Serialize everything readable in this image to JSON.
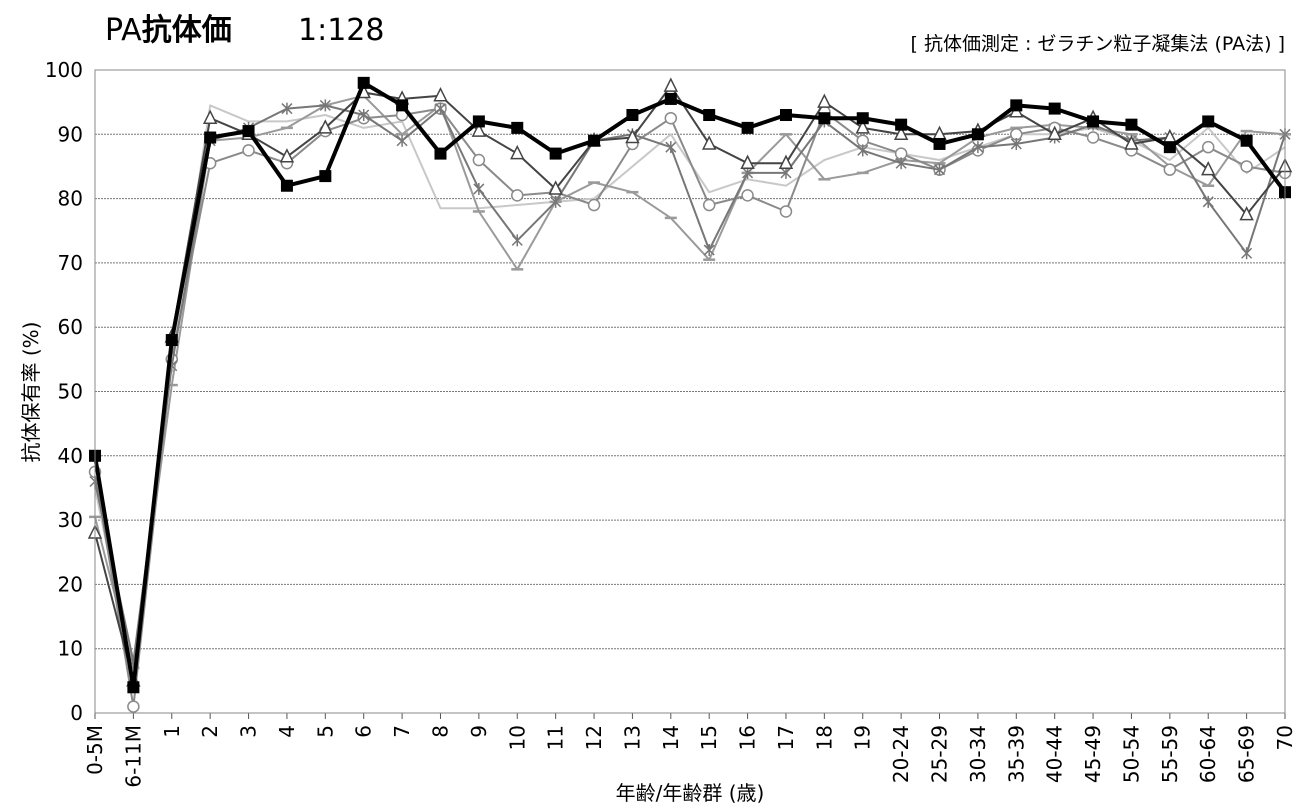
{
  "chart_data": {
    "type": "line",
    "title_prefix": "PA",
    "title_bold": "抗体価",
    "title_ratio": "1:128",
    "subtitle": "[ 抗体価測定 : ゼラチン粒子凝集法 (PA法) ]",
    "xlabel": "年齢/年齢群 (歳)",
    "ylabel": "抗体保有率 (%)",
    "ylim": [
      0,
      100
    ],
    "yticks": [
      0,
      10,
      20,
      30,
      40,
      50,
      60,
      70,
      80,
      90,
      100
    ],
    "grid": true,
    "categories": [
      "0-5M",
      "6-11M",
      "1",
      "2",
      "3",
      "4",
      "5",
      "6",
      "7",
      "8",
      "9",
      "10",
      "11",
      "12",
      "13",
      "14",
      "15",
      "16",
      "17",
      "18",
      "19",
      "20-24",
      "25-29",
      "30-34",
      "35-39",
      "40-44",
      "45-49",
      "50-54",
      "55-59",
      "60-64",
      "65-69",
      "70"
    ],
    "series": [
      {
        "marker": "none",
        "color": "#c8c8c8",
        "width": 2,
        "values": [
          35,
          6,
          55,
          94.5,
          92,
          92,
          93,
          91,
          92,
          78.5,
          78.5,
          79,
          79.5,
          80,
          85,
          90,
          81,
          83,
          82,
          86,
          88,
          87,
          86,
          88,
          90,
          90,
          91,
          89,
          86,
          91,
          84,
          88
        ]
      },
      {
        "marker": "dash",
        "color": "#9a9a9a",
        "width": 2,
        "values": [
          30.5,
          7,
          51,
          89,
          89.5,
          91,
          94.5,
          96,
          90,
          94.5,
          78,
          69,
          79.5,
          82.5,
          81,
          77,
          70.5,
          84,
          90,
          83,
          84,
          86,
          85.5,
          89.5,
          91,
          91.5,
          91,
          90,
          85,
          82,
          90.5,
          90
        ]
      },
      {
        "marker": "circle",
        "color": "#8a8a8a",
        "width": 2,
        "values": [
          37.5,
          1,
          55,
          85.5,
          87.5,
          85.5,
          90.5,
          92.5,
          93,
          94,
          86,
          80.5,
          81,
          79,
          88.5,
          92.5,
          79,
          80.5,
          78,
          93.5,
          89,
          87,
          84.5,
          87.5,
          90,
          91,
          89.5,
          87.5,
          84.5,
          88,
          85,
          84
        ]
      },
      {
        "marker": "x",
        "color": "#777777",
        "width": 2,
        "values": [
          36,
          8,
          54,
          89,
          91,
          94,
          94.5,
          93,
          89,
          94,
          81.5,
          73.5,
          79.5,
          89,
          90,
          88,
          72,
          84,
          84,
          92,
          87.5,
          85.5,
          84.5,
          88,
          88.5,
          89.5,
          91.5,
          89,
          89.5,
          79.5,
          71.5,
          90
        ]
      },
      {
        "marker": "triangle",
        "color": "#444444",
        "width": 2,
        "values": [
          28,
          5,
          58.5,
          92.5,
          90,
          86.5,
          91,
          96.5,
          95.5,
          96,
          90.5,
          87,
          81.5,
          89,
          89.5,
          97.5,
          88.5,
          85.5,
          85.5,
          95,
          91,
          90,
          90,
          90.5,
          93.5,
          90,
          92.5,
          88.5,
          89.5,
          84.5,
          77.5,
          85
        ]
      },
      {
        "marker": "square",
        "color": "#000000",
        "width": 4,
        "values": [
          40,
          4,
          58,
          89.5,
          90.5,
          82,
          83.5,
          98,
          94.5,
          87,
          92,
          91,
          87,
          89,
          93,
          95.5,
          93,
          91,
          93,
          92.5,
          92.5,
          91.5,
          88.5,
          90,
          94.5,
          94,
          92,
          91.5,
          88,
          92,
          89,
          81
        ]
      }
    ]
  }
}
